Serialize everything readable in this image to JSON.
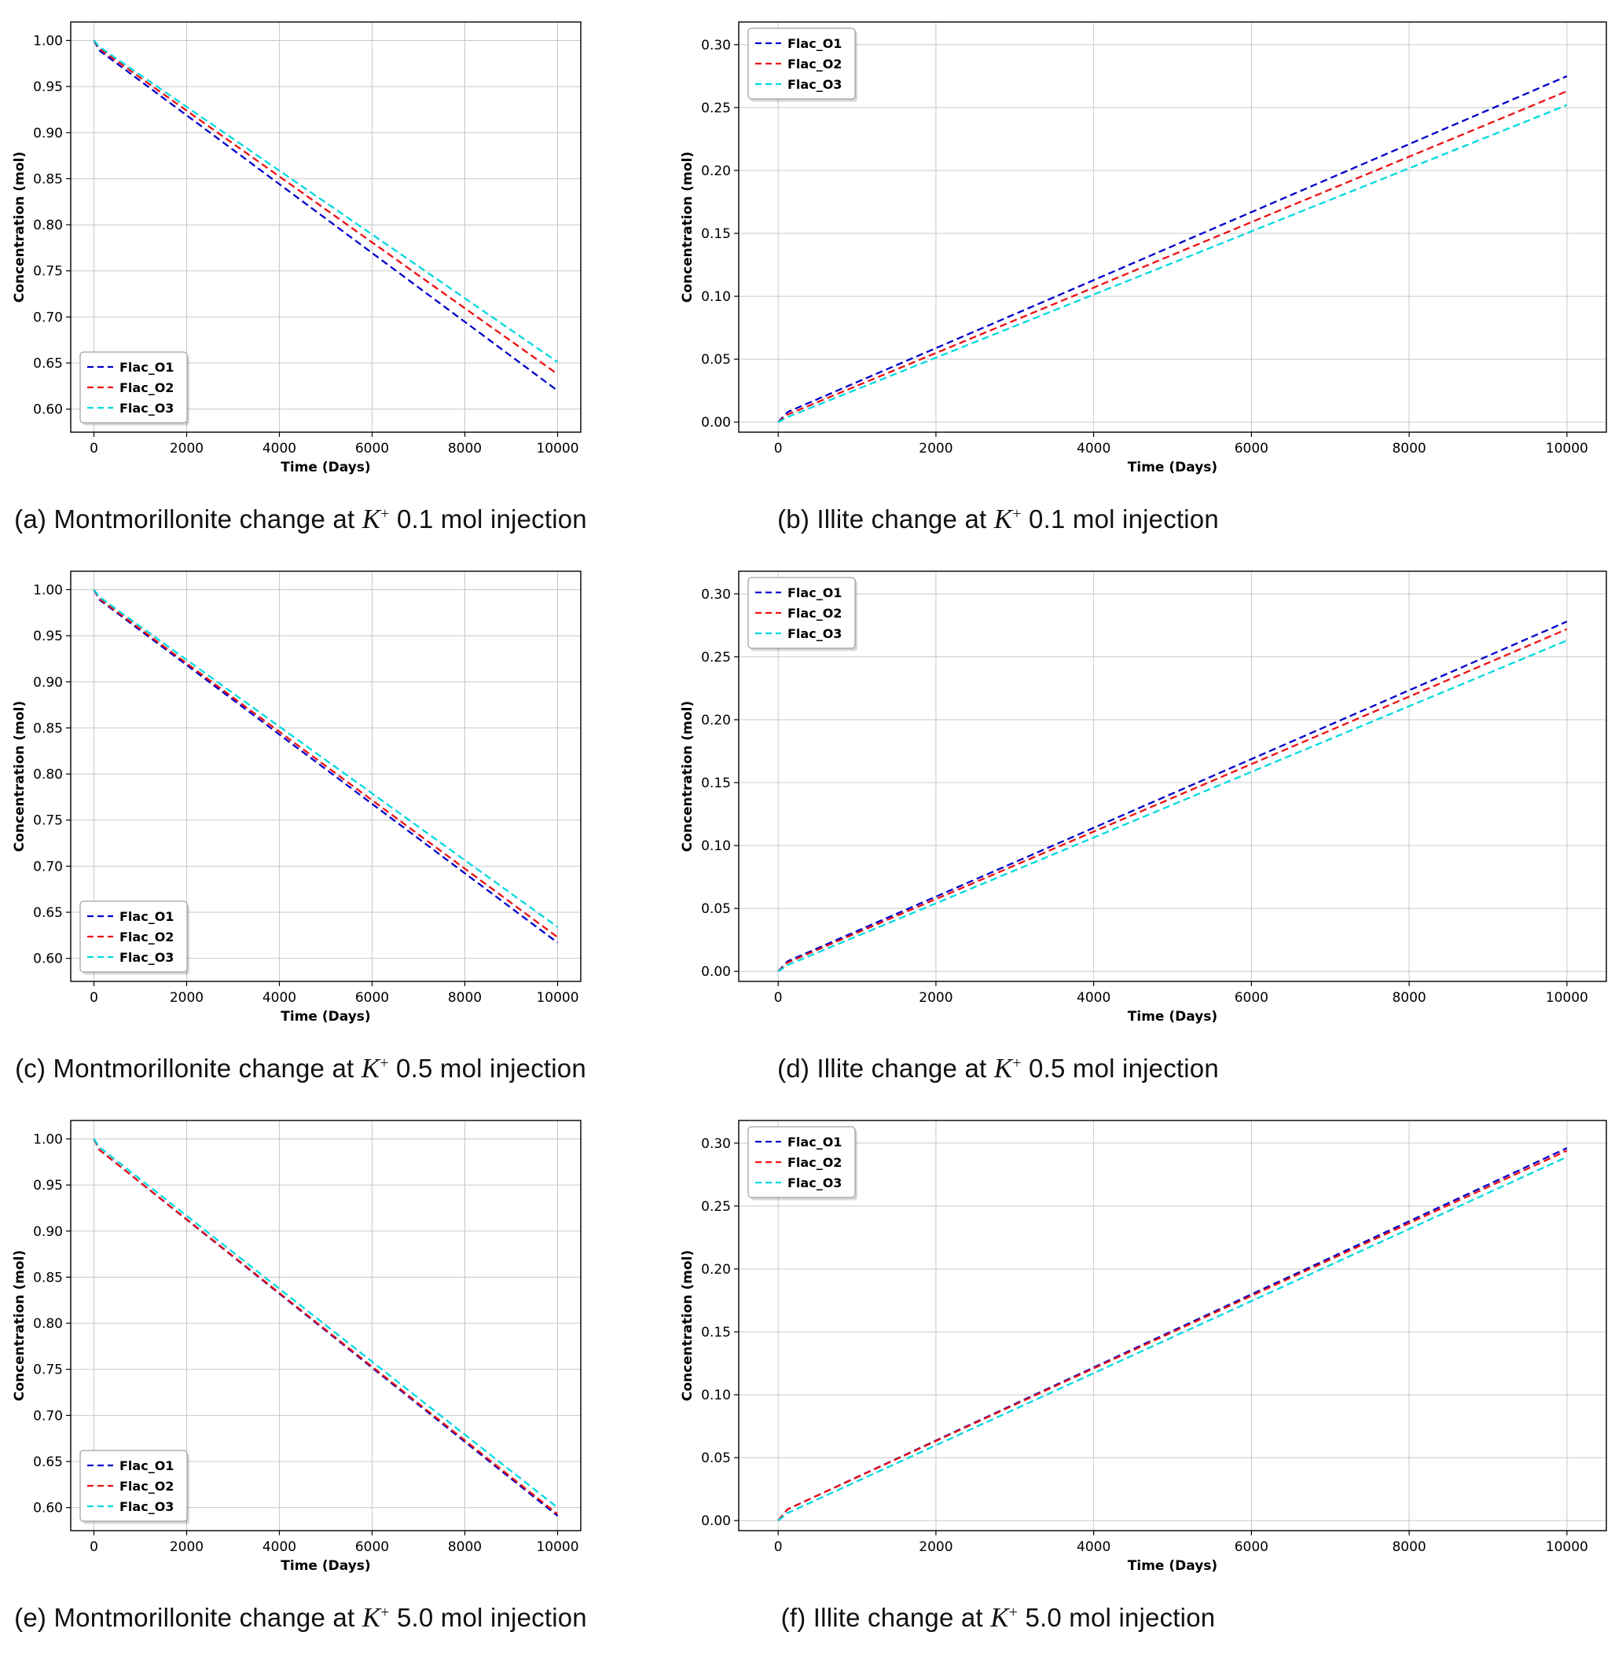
{
  "figure": {
    "background": "#ffffff",
    "grid_color": "#c8c8c8",
    "axis_color": "#000000"
  },
  "chart_data": [
    {
      "id": "a",
      "type": "line",
      "xlabel": "Time (Days)",
      "ylabel": "Concentration (mol)",
      "xlim": [
        -500,
        10500
      ],
      "ylim": [
        0.575,
        1.02
      ],
      "xticks": [
        0,
        2000,
        4000,
        6000,
        8000,
        10000
      ],
      "yticks": [
        0.6,
        0.65,
        0.7,
        0.75,
        0.8,
        0.85,
        0.9,
        0.95,
        1.0
      ],
      "ytick_decimals": 2,
      "grid": true,
      "legend_position": "lower-left",
      "caption": {
        "index": "(a)",
        "before": "Montmorillonite change at",
        "k": "K",
        "sup": "+",
        "after": "0.1 mol injection"
      },
      "series": [
        {
          "name": "Flac_O1",
          "color": "#0000cd",
          "style": "dashed",
          "x": [
            0,
            120,
            10000
          ],
          "y": [
            1.0,
            0.989,
            0.62
          ]
        },
        {
          "name": "Flac_O2",
          "color": "#ee1111",
          "style": "dashed",
          "x": [
            0,
            120,
            10000
          ],
          "y": [
            1.0,
            0.991,
            0.638
          ]
        },
        {
          "name": "Flac_O3",
          "color": "#00d9e0",
          "style": "dashed",
          "x": [
            0,
            120,
            10000
          ],
          "y": [
            1.0,
            0.993,
            0.651
          ]
        }
      ]
    },
    {
      "id": "b",
      "type": "line",
      "xlabel": "Time (Days)",
      "ylabel": "Concentration (mol)",
      "xlim": [
        -500,
        10500
      ],
      "ylim": [
        -0.008,
        0.318
      ],
      "xticks": [
        0,
        2000,
        4000,
        6000,
        8000,
        10000
      ],
      "yticks": [
        0.0,
        0.05,
        0.1,
        0.15,
        0.2,
        0.25,
        0.3
      ],
      "ytick_decimals": 2,
      "grid": true,
      "legend_position": "upper-left",
      "caption": {
        "index": "(b)",
        "before": "Illite change at",
        "k": "K",
        "sup": "+",
        "after": "0.1 mol injection"
      },
      "series": [
        {
          "name": "Flac_O1",
          "color": "#0000cd",
          "style": "dashed",
          "x": [
            0,
            120,
            10000
          ],
          "y": [
            0.0,
            0.008,
            0.275
          ]
        },
        {
          "name": "Flac_O2",
          "color": "#ee1111",
          "style": "dashed",
          "x": [
            0,
            120,
            10000
          ],
          "y": [
            0.0,
            0.006,
            0.263
          ]
        },
        {
          "name": "Flac_O3",
          "color": "#00d9e0",
          "style": "dashed",
          "x": [
            0,
            120,
            10000
          ],
          "y": [
            0.0,
            0.004,
            0.252
          ]
        }
      ]
    },
    {
      "id": "c",
      "type": "line",
      "xlabel": "Time (Days)",
      "ylabel": "Concentration (mol)",
      "xlim": [
        -500,
        10500
      ],
      "ylim": [
        0.575,
        1.02
      ],
      "xticks": [
        0,
        2000,
        4000,
        6000,
        8000,
        10000
      ],
      "yticks": [
        0.6,
        0.65,
        0.7,
        0.75,
        0.8,
        0.85,
        0.9,
        0.95,
        1.0
      ],
      "ytick_decimals": 2,
      "grid": true,
      "legend_position": "lower-left",
      "caption": {
        "index": "(c)",
        "before": "Montmorillonite change at",
        "k": "K",
        "sup": "+",
        "after": "0.5 mol injection"
      },
      "series": [
        {
          "name": "Flac_O1",
          "color": "#0000cd",
          "style": "dashed",
          "x": [
            0,
            120,
            10000
          ],
          "y": [
            1.0,
            0.989,
            0.617
          ]
        },
        {
          "name": "Flac_O2",
          "color": "#ee1111",
          "style": "dashed",
          "x": [
            0,
            120,
            10000
          ],
          "y": [
            1.0,
            0.99,
            0.623
          ]
        },
        {
          "name": "Flac_O3",
          "color": "#00d9e0",
          "style": "dashed",
          "x": [
            0,
            120,
            10000
          ],
          "y": [
            1.0,
            0.992,
            0.634
          ]
        }
      ]
    },
    {
      "id": "d",
      "type": "line",
      "xlabel": "Time (Days)",
      "ylabel": "Concentration (mol)",
      "xlim": [
        -500,
        10500
      ],
      "ylim": [
        -0.008,
        0.318
      ],
      "xticks": [
        0,
        2000,
        4000,
        6000,
        8000,
        10000
      ],
      "yticks": [
        0.0,
        0.05,
        0.1,
        0.15,
        0.2,
        0.25,
        0.3
      ],
      "ytick_decimals": 2,
      "grid": true,
      "legend_position": "upper-left",
      "caption": {
        "index": "(d)",
        "before": "Illite change at",
        "k": "K",
        "sup": "+",
        "after": "0.5 mol injection"
      },
      "series": [
        {
          "name": "Flac_O1",
          "color": "#0000cd",
          "style": "dashed",
          "x": [
            0,
            120,
            10000
          ],
          "y": [
            0.0,
            0.008,
            0.278
          ]
        },
        {
          "name": "Flac_O2",
          "color": "#ee1111",
          "style": "dashed",
          "x": [
            0,
            120,
            10000
          ],
          "y": [
            0.0,
            0.007,
            0.272
          ]
        },
        {
          "name": "Flac_O3",
          "color": "#00d9e0",
          "style": "dashed",
          "x": [
            0,
            120,
            10000
          ],
          "y": [
            0.0,
            0.005,
            0.263
          ]
        }
      ]
    },
    {
      "id": "e",
      "type": "line",
      "xlabel": "Time (Days)",
      "ylabel": "Concentration (mol)",
      "xlim": [
        -500,
        10500
      ],
      "ylim": [
        0.575,
        1.02
      ],
      "xticks": [
        0,
        2000,
        4000,
        6000,
        8000,
        10000
      ],
      "yticks": [
        0.6,
        0.65,
        0.7,
        0.75,
        0.8,
        0.85,
        0.9,
        0.95,
        1.0
      ],
      "ytick_decimals": 2,
      "grid": true,
      "legend_position": "lower-left",
      "caption": {
        "index": "(e)",
        "before": "Montmorillonite change at",
        "k": "K",
        "sup": "+",
        "after": "5.0 mol injection"
      },
      "series": [
        {
          "name": "Flac_O1",
          "color": "#0000cd",
          "style": "dashed",
          "x": [
            0,
            120,
            10000
          ],
          "y": [
            1.0,
            0.988,
            0.591
          ]
        },
        {
          "name": "Flac_O2",
          "color": "#ee1111",
          "style": "dashed",
          "x": [
            0,
            120,
            10000
          ],
          "y": [
            1.0,
            0.988,
            0.593
          ]
        },
        {
          "name": "Flac_O3",
          "color": "#00d9e0",
          "style": "dashed",
          "x": [
            0,
            120,
            10000
          ],
          "y": [
            1.0,
            0.991,
            0.6
          ]
        }
      ]
    },
    {
      "id": "f",
      "type": "line",
      "xlabel": "Time (Days)",
      "ylabel": "Concentration (mol)",
      "xlim": [
        -500,
        10500
      ],
      "ylim": [
        -0.008,
        0.318
      ],
      "xticks": [
        0,
        2000,
        4000,
        6000,
        8000,
        10000
      ],
      "yticks": [
        0.0,
        0.05,
        0.1,
        0.15,
        0.2,
        0.25,
        0.3
      ],
      "ytick_decimals": 2,
      "grid": true,
      "legend_position": "upper-left",
      "caption": {
        "index": "(f)",
        "before": "Illite change at",
        "k": "K",
        "sup": "+",
        "after": "5.0 mol injection"
      },
      "series": [
        {
          "name": "Flac_O1",
          "color": "#0000cd",
          "style": "dashed",
          "x": [
            0,
            120,
            10000
          ],
          "y": [
            0.0,
            0.009,
            0.296
          ]
        },
        {
          "name": "Flac_O2",
          "color": "#ee1111",
          "style": "dashed",
          "x": [
            0,
            120,
            10000
          ],
          "y": [
            0.0,
            0.009,
            0.294
          ]
        },
        {
          "name": "Flac_O3",
          "color": "#00d9e0",
          "style": "dashed",
          "x": [
            0,
            120,
            10000
          ],
          "y": [
            0.0,
            0.006,
            0.289
          ]
        }
      ]
    }
  ]
}
